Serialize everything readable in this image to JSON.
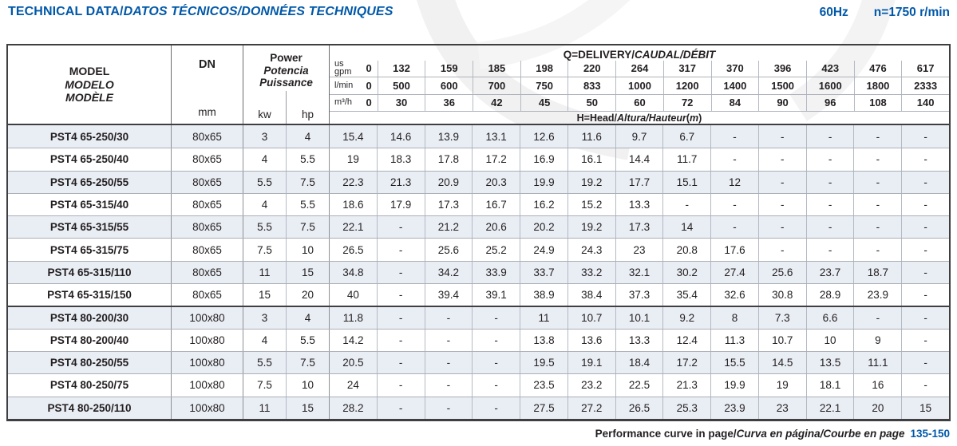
{
  "page": {
    "title_parts": [
      {
        "t": "TECHNICAL DATA/",
        "i": false
      },
      {
        "t": "DATOS TÉCNICOS/DONNÉES TECHNIQUES",
        "i": true
      }
    ],
    "frequency": "60Hz",
    "speed": "n=1750 r/min",
    "footer_parts": [
      {
        "t": "Performance curve in page/",
        "i": false
      },
      {
        "t": "Curva en página/Courbe en page",
        "i": true
      }
    ],
    "footer_pages": "135-150"
  },
  "colors": {
    "accent_blue": "#0058A9",
    "row_shade": "#E9EDF4",
    "grid_dark": "#3F3F41",
    "grid_light": "#B4BAC3",
    "text": "#231F20"
  },
  "table": {
    "model_header_lines": [
      {
        "t": "MODEL",
        "i": false
      },
      {
        "t": "MODELO",
        "i": true
      },
      {
        "t": "MODÈLE",
        "i": true
      }
    ],
    "dn_label": "DN",
    "dn_unit": "mm",
    "power_header_lines": [
      {
        "t": "Power",
        "i": false
      },
      {
        "t": "Potencia",
        "i": true
      },
      {
        "t": "Puissance",
        "i": true
      }
    ],
    "kw_label": "kw",
    "hp_label": "hp",
    "delivery_title_parts": [
      {
        "t": "Q=DELIVERY/",
        "i": false
      },
      {
        "t": "CAUDAL/DÉBIT",
        "i": true
      }
    ],
    "head_note_parts": [
      {
        "t": "H=Head/",
        "i": false
      },
      {
        "t": "Altura/Hauteur",
        "i": true
      },
      {
        "t": "(",
        "i": false
      },
      {
        "t": "m",
        "i": true
      },
      {
        "t": ")",
        "i": false
      }
    ],
    "flow_rows": [
      {
        "label_lines": [
          "us",
          "gpm"
        ],
        "zero": "0",
        "values": [
          "132",
          "159",
          "185",
          "198",
          "220",
          "264",
          "317",
          "370",
          "396",
          "423",
          "476",
          "617"
        ]
      },
      {
        "label_lines": [
          "l/min"
        ],
        "zero": "0",
        "values": [
          "500",
          "600",
          "700",
          "750",
          "833",
          "1000",
          "1200",
          "1400",
          "1500",
          "1600",
          "1800",
          "2333"
        ]
      },
      {
        "label_lines": [
          "m³/h"
        ],
        "zero": "0",
        "values": [
          "30",
          "36",
          "42",
          "45",
          "50",
          "60",
          "72",
          "84",
          "90",
          "96",
          "108",
          "140"
        ]
      }
    ],
    "rows": [
      {
        "model": "PST4 65-250/30",
        "dn": "80x65",
        "kw": "3",
        "hp": "4",
        "head": [
          "15.4",
          "14.6",
          "13.9",
          "13.1",
          "12.6",
          "11.6",
          "9.7",
          "6.7",
          "-",
          "-",
          "-",
          "-",
          "-"
        ],
        "shaded": true,
        "group_start": false
      },
      {
        "model": "PST4 65-250/40",
        "dn": "80x65",
        "kw": "4",
        "hp": "5.5",
        "head": [
          "19",
          "18.3",
          "17.8",
          "17.2",
          "16.9",
          "16.1",
          "14.4",
          "11.7",
          "-",
          "-",
          "-",
          "-",
          "-"
        ],
        "shaded": false,
        "group_start": false
      },
      {
        "model": "PST4 65-250/55",
        "dn": "80x65",
        "kw": "5.5",
        "hp": "7.5",
        "head": [
          "22.3",
          "21.3",
          "20.9",
          "20.3",
          "19.9",
          "19.2",
          "17.7",
          "15.1",
          "12",
          "-",
          "-",
          "-",
          "-"
        ],
        "shaded": true,
        "group_start": false
      },
      {
        "model": "PST4 65-315/40",
        "dn": "80x65",
        "kw": "4",
        "hp": "5.5",
        "head": [
          "18.6",
          "17.9",
          "17.3",
          "16.7",
          "16.2",
          "15.2",
          "13.3",
          "-",
          "-",
          "-",
          "-",
          "-",
          "-"
        ],
        "shaded": false,
        "group_start": false
      },
      {
        "model": "PST4 65-315/55",
        "dn": "80x65",
        "kw": "5.5",
        "hp": "7.5",
        "head": [
          "22.1",
          "-",
          "21.2",
          "20.6",
          "20.2",
          "19.2",
          "17.3",
          "14",
          "-",
          "-",
          "-",
          "-",
          "-"
        ],
        "shaded": true,
        "group_start": false
      },
      {
        "model": "PST4 65-315/75",
        "dn": "80x65",
        "kw": "7.5",
        "hp": "10",
        "head": [
          "26.5",
          "-",
          "25.6",
          "25.2",
          "24.9",
          "24.3",
          "23",
          "20.8",
          "17.6",
          "-",
          "-",
          "-",
          "-"
        ],
        "shaded": false,
        "group_start": false
      },
      {
        "model": "PST4 65-315/110",
        "dn": "80x65",
        "kw": "11",
        "hp": "15",
        "head": [
          "34.8",
          "-",
          "34.2",
          "33.9",
          "33.7",
          "33.2",
          "32.1",
          "30.2",
          "27.4",
          "25.6",
          "23.7",
          "18.7",
          "-"
        ],
        "shaded": true,
        "group_start": false
      },
      {
        "model": "PST4 65-315/150",
        "dn": "80x65",
        "kw": "15",
        "hp": "20",
        "head": [
          "40",
          "-",
          "39.4",
          "39.1",
          "38.9",
          "38.4",
          "37.3",
          "35.4",
          "32.6",
          "30.8",
          "28.9",
          "23.9",
          "-"
        ],
        "shaded": false,
        "group_start": false
      },
      {
        "model": "PST4 80-200/30",
        "dn": "100x80",
        "kw": "3",
        "hp": "4",
        "head": [
          "11.8",
          "-",
          "-",
          "-",
          "11",
          "10.7",
          "10.1",
          "9.2",
          "8",
          "7.3",
          "6.6",
          "-",
          "-"
        ],
        "shaded": true,
        "group_start": true
      },
      {
        "model": "PST4 80-200/40",
        "dn": "100x80",
        "kw": "4",
        "hp": "5.5",
        "head": [
          "14.2",
          "-",
          "-",
          "-",
          "13.8",
          "13.6",
          "13.3",
          "12.4",
          "11.3",
          "10.7",
          "10",
          "9",
          "-"
        ],
        "shaded": false,
        "group_start": false
      },
      {
        "model": "PST4 80-250/55",
        "dn": "100x80",
        "kw": "5.5",
        "hp": "7.5",
        "head": [
          "20.5",
          "-",
          "-",
          "-",
          "19.5",
          "19.1",
          "18.4",
          "17.2",
          "15.5",
          "14.5",
          "13.5",
          "11.1",
          "-"
        ],
        "shaded": true,
        "group_start": false
      },
      {
        "model": "PST4 80-250/75",
        "dn": "100x80",
        "kw": "7.5",
        "hp": "10",
        "head": [
          "24",
          "-",
          "-",
          "-",
          "23.5",
          "23.2",
          "22.5",
          "21.3",
          "19.9",
          "19",
          "18.1",
          "16",
          "-"
        ],
        "shaded": false,
        "group_start": false
      },
      {
        "model": "PST4 80-250/110",
        "dn": "100x80",
        "kw": "11",
        "hp": "15",
        "head": [
          "28.2",
          "-",
          "-",
          "-",
          "27.5",
          "27.2",
          "26.5",
          "25.3",
          "23.9",
          "23",
          "22.1",
          "20",
          "15"
        ],
        "shaded": true,
        "group_start": false
      }
    ]
  }
}
